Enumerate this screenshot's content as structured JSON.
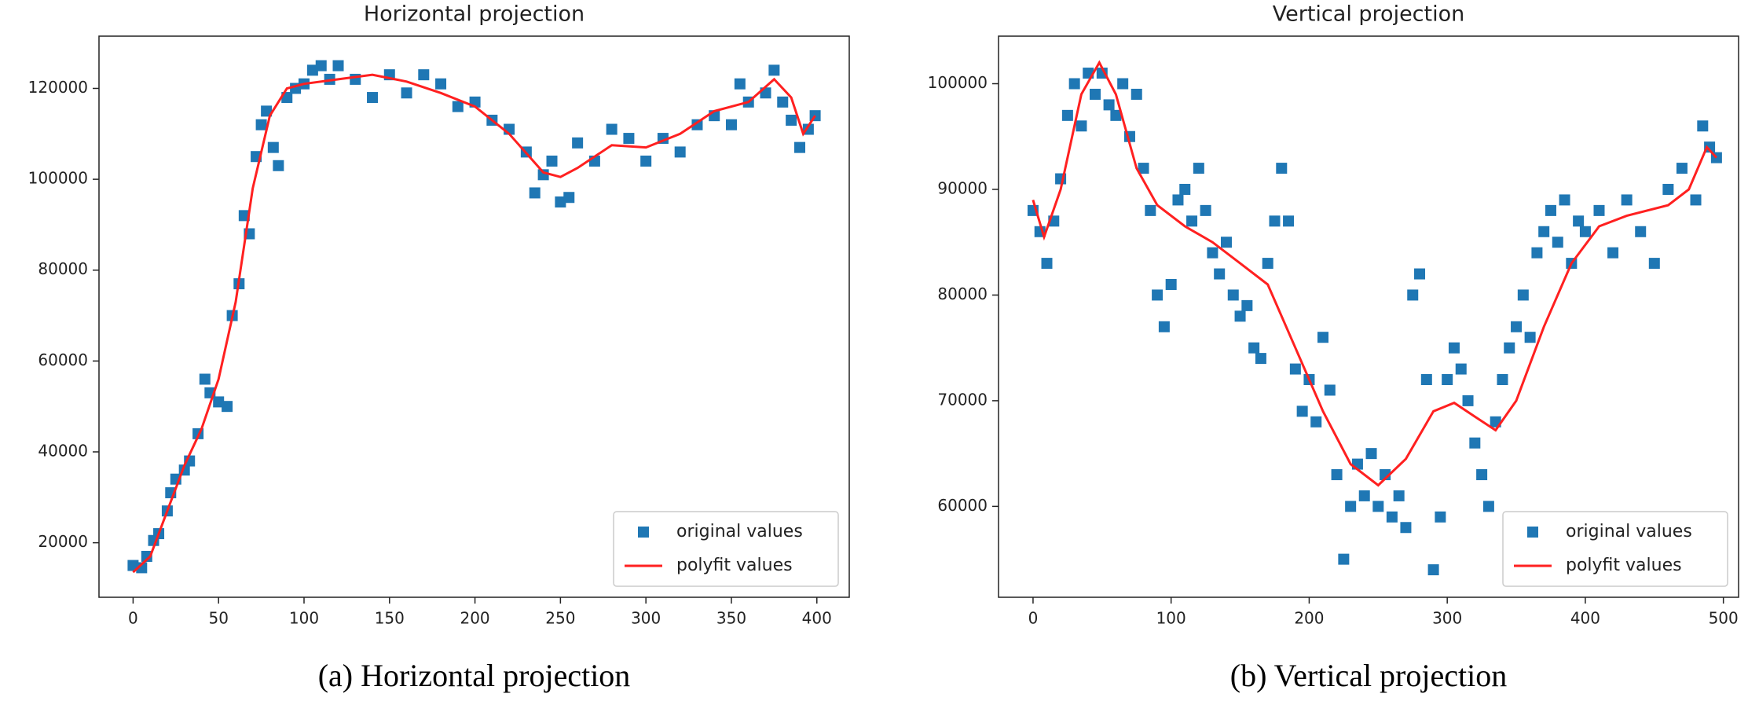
{
  "chart_data": [
    {
      "type": "scatter",
      "title": "Horizontal projection",
      "caption": "(a) Horizontal projection",
      "xlim": [
        -19.95,
        418.95
      ],
      "ylim": [
        8000,
        131500
      ],
      "xticks": [
        0,
        50,
        100,
        150,
        200,
        250,
        300,
        350,
        400
      ],
      "yticks": [
        20000,
        40000,
        60000,
        80000,
        100000,
        120000
      ],
      "legend": "lower right",
      "series": [
        {
          "name": "original values",
          "type": "scatter",
          "marker": "square",
          "color": "#1f77b4",
          "x": [
            0,
            5,
            8,
            12,
            15,
            20,
            22,
            25,
            30,
            33,
            38,
            42,
            45,
            50,
            55,
            58,
            62,
            65,
            68,
            72,
            75,
            78,
            82,
            85,
            90,
            95,
            100,
            105,
            110,
            115,
            120,
            130,
            140,
            150,
            160,
            170,
            180,
            190,
            200,
            210,
            220,
            230,
            235,
            240,
            245,
            250,
            255,
            260,
            270,
            280,
            290,
            300,
            310,
            320,
            330,
            340,
            350,
            355,
            360,
            370,
            375,
            380,
            385,
            390,
            395,
            399
          ],
          "values": [
            15000,
            14500,
            17000,
            20500,
            22000,
            27000,
            31000,
            34000,
            36000,
            38000,
            44000,
            56000,
            53000,
            51000,
            50000,
            70000,
            77000,
            92000,
            88000,
            105000,
            112000,
            115000,
            107000,
            103000,
            118000,
            120000,
            121000,
            124000,
            125000,
            122000,
            125000,
            122000,
            118000,
            123000,
            119000,
            123000,
            121000,
            116000,
            117000,
            113000,
            111000,
            106000,
            97000,
            101000,
            104000,
            95000,
            96000,
            108000,
            104000,
            111000,
            109000,
            104000,
            109000,
            106000,
            112000,
            114000,
            112000,
            121000,
            117000,
            119000,
            124000,
            117000,
            113000,
            107000,
            111000,
            114000
          ]
        },
        {
          "name": "polyfit values",
          "type": "line",
          "color": "#ff2020",
          "x": [
            0,
            10,
            20,
            30,
            40,
            50,
            60,
            70,
            80,
            90,
            100,
            120,
            140,
            160,
            180,
            200,
            220,
            240,
            250,
            260,
            280,
            300,
            320,
            340,
            360,
            375,
            385,
            392,
            399
          ],
          "values": [
            13500,
            17000,
            27000,
            37000,
            45000,
            56000,
            73000,
            98000,
            114000,
            120000,
            121000,
            122000,
            123000,
            121500,
            119000,
            116000,
            110000,
            101500,
            100500,
            102500,
            107500,
            107000,
            110000,
            115000,
            117000,
            122000,
            118000,
            110000,
            114000
          ]
        }
      ]
    },
    {
      "type": "scatter",
      "title": "Vertical projection",
      "caption": "(b) Vertical projection",
      "xlim": [
        -25,
        511
      ],
      "ylim": [
        51400,
        104500
      ],
      "xticks": [
        0,
        100,
        200,
        300,
        400,
        500
      ],
      "yticks": [
        60000,
        70000,
        80000,
        90000,
        100000
      ],
      "legend": "lower right",
      "series": [
        {
          "name": "original values",
          "type": "scatter",
          "marker": "square",
          "color": "#1f77b4",
          "x": [
            0,
            5,
            10,
            15,
            20,
            25,
            30,
            35,
            40,
            45,
            50,
            55,
            60,
            65,
            70,
            75,
            80,
            85,
            90,
            95,
            100,
            105,
            110,
            115,
            120,
            125,
            130,
            135,
            140,
            145,
            150,
            155,
            160,
            165,
            170,
            175,
            180,
            185,
            190,
            195,
            200,
            205,
            210,
            215,
            220,
            225,
            230,
            235,
            240,
            245,
            250,
            255,
            260,
            265,
            270,
            275,
            280,
            285,
            290,
            295,
            300,
            305,
            310,
            315,
            320,
            325,
            330,
            335,
            340,
            345,
            350,
            355,
            360,
            365,
            370,
            375,
            380,
            385,
            390,
            395,
            400,
            410,
            420,
            430,
            440,
            450,
            460,
            470,
            480,
            485,
            490,
            495
          ],
          "values": [
            88000,
            86000,
            83000,
            87000,
            91000,
            97000,
            100000,
            96000,
            101000,
            99000,
            101000,
            98000,
            97000,
            100000,
            95000,
            99000,
            92000,
            88000,
            80000,
            77000,
            81000,
            89000,
            90000,
            87000,
            92000,
            88000,
            84000,
            82000,
            85000,
            80000,
            78000,
            79000,
            75000,
            74000,
            83000,
            87000,
            92000,
            87000,
            73000,
            69000,
            72000,
            68000,
            76000,
            71000,
            63000,
            55000,
            60000,
            64000,
            61000,
            65000,
            60000,
            63000,
            59000,
            61000,
            58000,
            80000,
            82000,
            72000,
            54000,
            59000,
            72000,
            75000,
            73000,
            70000,
            66000,
            63000,
            60000,
            68000,
            72000,
            75000,
            77000,
            80000,
            76000,
            84000,
            86000,
            88000,
            85000,
            89000,
            83000,
            87000,
            86000,
            88000,
            84000,
            89000,
            86000,
            83000,
            90000,
            92000,
            89000,
            96000,
            94000,
            93000
          ]
        },
        {
          "name": "polyfit values",
          "type": "line",
          "color": "#ff2020",
          "x": [
            0,
            8,
            20,
            35,
            48,
            60,
            75,
            90,
            110,
            130,
            150,
            170,
            190,
            210,
            230,
            250,
            270,
            290,
            305,
            320,
            335,
            350,
            370,
            390,
            410,
            430,
            460,
            475,
            488,
            495
          ],
          "values": [
            89000,
            85500,
            90000,
            99000,
            102000,
            99000,
            92000,
            88500,
            86500,
            85000,
            83000,
            81000,
            75000,
            69000,
            64000,
            62000,
            64500,
            69000,
            69800,
            68500,
            67200,
            70000,
            77000,
            83000,
            86500,
            87500,
            88500,
            90000,
            94000,
            93000
          ]
        }
      ]
    }
  ]
}
